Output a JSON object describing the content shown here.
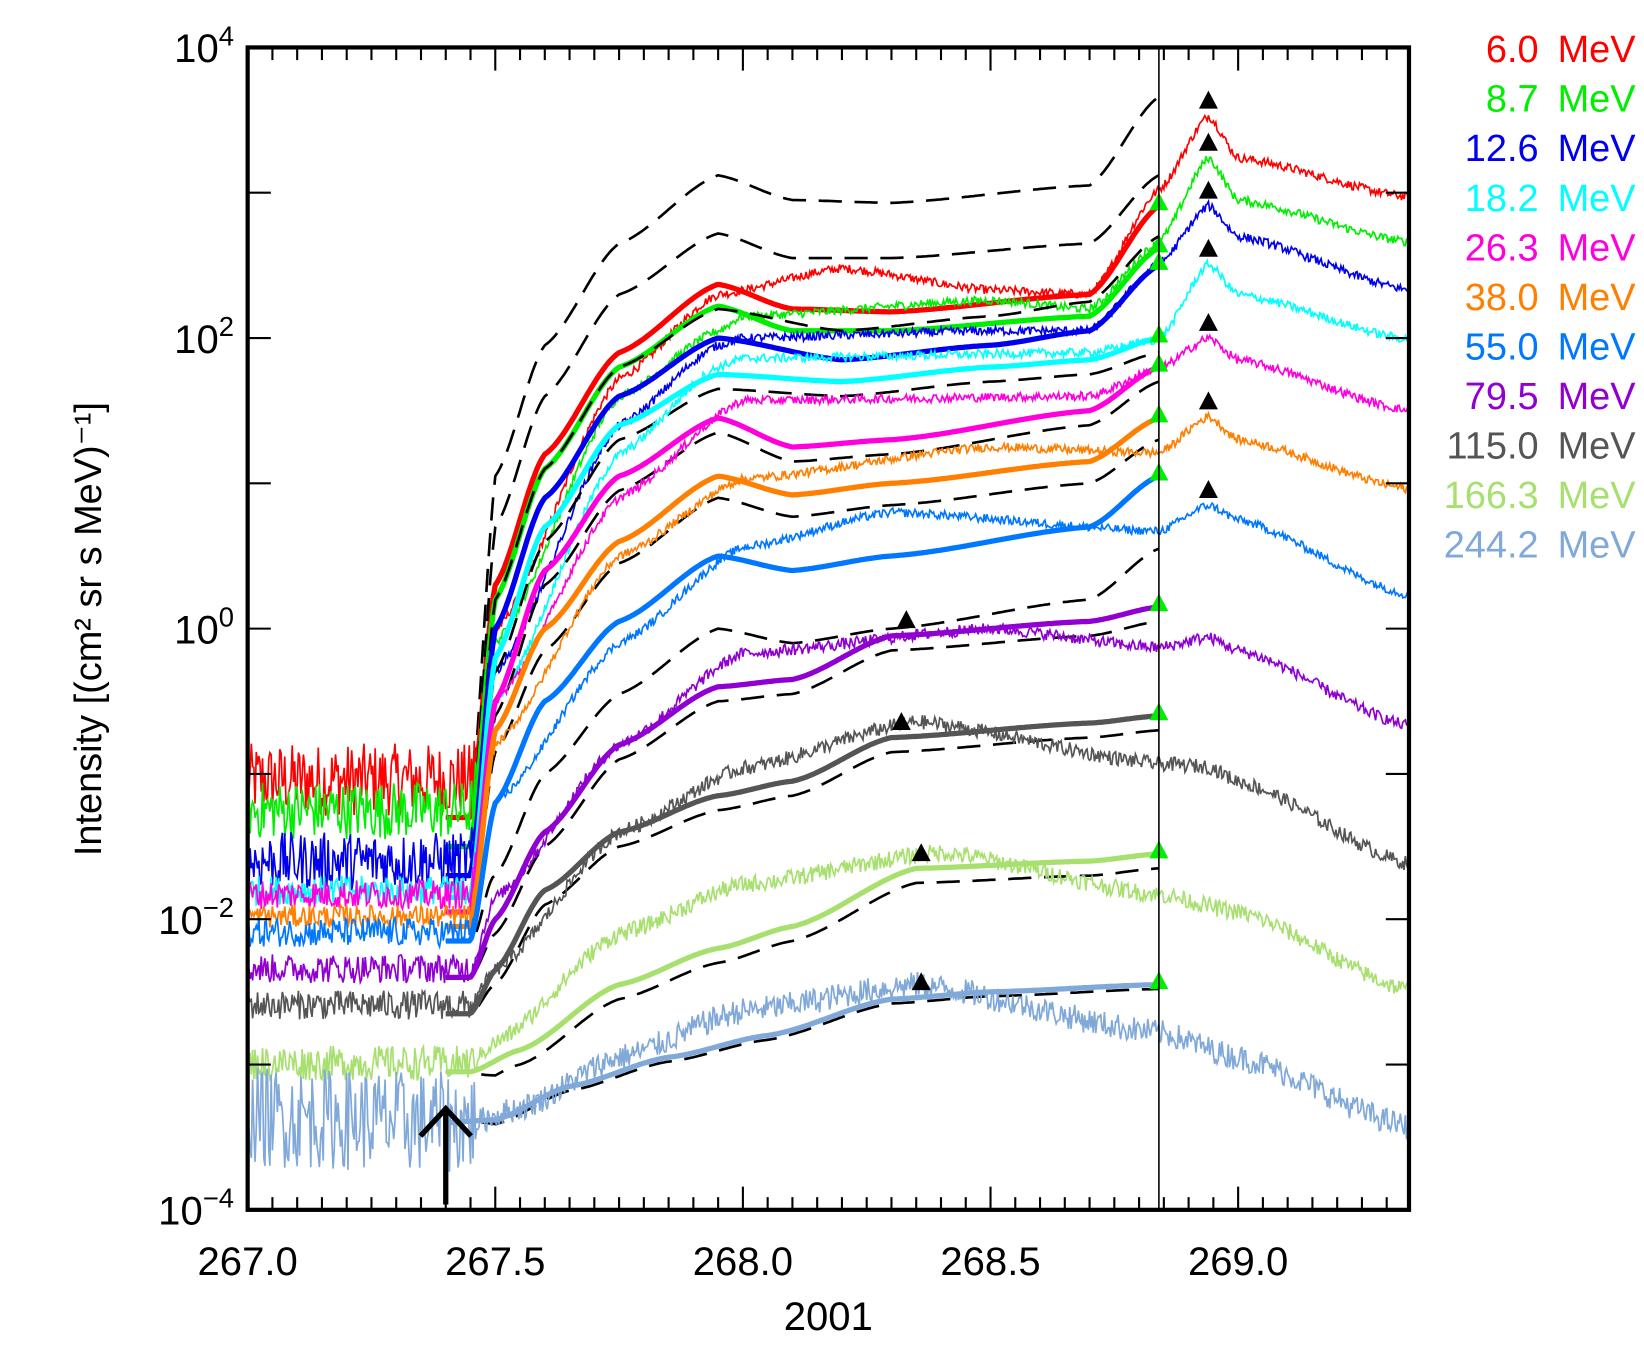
{
  "chart_data": {
    "type": "line",
    "title": "",
    "xlabel": "2001",
    "ylabel": "Intensity [(cm² sr s MeV)⁻¹]",
    "xlim": [
      267.0,
      269.345
    ],
    "ylim": [
      0.0001,
      10000
    ],
    "yscale": "log",
    "x_ticks": [
      "267.0",
      "267.5",
      "268.0",
      "268.5",
      "269.0"
    ],
    "x_tick_values": [
      267.0,
      267.5,
      268.0,
      268.5,
      269.0
    ],
    "y_ticks": [
      {
        "exp": "4",
        "value": 4
      },
      {
        "exp": "2",
        "value": 2
      },
      {
        "exp": "0",
        "value": 0
      },
      {
        "exp": "-2",
        "value": -2
      },
      {
        "exp": "-4",
        "value": -4
      }
    ],
    "y_tick_base": "10",
    "legend_placement": "right",
    "shock_time": 268.84,
    "onset_arrow_time": 267.4,
    "series": [
      {
        "name": "6.0 MeV",
        "energy": "6.0",
        "color": "#ff0000",
        "observed_log10": [
          [
            267.0,
            -1.04
          ],
          [
            267.45,
            -1.04
          ],
          [
            267.5,
            -0.02
          ],
          [
            267.75,
            1.72
          ],
          [
            267.95,
            2.3
          ],
          [
            268.2,
            2.48
          ],
          [
            268.5,
            2.33
          ],
          [
            268.7,
            2.3
          ],
          [
            268.84,
            3.02
          ],
          [
            268.94,
            3.53
          ],
          [
            269.0,
            3.24
          ],
          [
            269.345,
            2.97
          ]
        ],
        "fit_log10": [
          [
            267.4,
            -1.3
          ],
          [
            267.45,
            -1.3
          ],
          [
            267.5,
            0.3
          ],
          [
            267.6,
            1.2
          ],
          [
            267.75,
            1.9
          ],
          [
            267.95,
            2.37
          ],
          [
            268.1,
            2.2
          ],
          [
            268.3,
            2.18
          ],
          [
            268.7,
            2.3
          ],
          [
            268.84,
            2.91
          ]
        ],
        "dashed_offset": 0.75,
        "peak_marker": 268.94
      },
      {
        "name": "8.7 MeV",
        "energy": "8.7",
        "color": "#00ee00",
        "observed_log10": [
          [
            267.0,
            -1.25
          ],
          [
            267.45,
            -1.25
          ],
          [
            267.5,
            -0.1
          ],
          [
            267.75,
            1.6
          ],
          [
            267.95,
            2.05
          ],
          [
            268.0,
            2.15
          ],
          [
            268.5,
            2.26
          ],
          [
            268.7,
            2.2
          ],
          [
            268.84,
            2.66
          ],
          [
            268.94,
            3.24
          ],
          [
            269.0,
            2.95
          ],
          [
            269.345,
            2.66
          ]
        ],
        "fit_log10": [
          [
            267.4,
            -1.5
          ],
          [
            267.45,
            -1.5
          ],
          [
            267.5,
            0.2
          ],
          [
            267.6,
            1.1
          ],
          [
            267.75,
            1.8
          ],
          [
            267.95,
            2.22
          ],
          [
            268.1,
            2.05
          ],
          [
            268.3,
            2.05
          ],
          [
            268.7,
            2.15
          ],
          [
            268.84,
            2.62
          ]
        ],
        "dashed_offset": 0.5,
        "peak_marker": 268.94
      },
      {
        "name": "12.6 MeV",
        "energy": "12.6",
        "color": "#0000ee",
        "observed_log10": [
          [
            267.0,
            -1.6
          ],
          [
            267.45,
            -1.6
          ],
          [
            267.5,
            -0.3
          ],
          [
            267.75,
            1.4
          ],
          [
            267.95,
            1.95
          ],
          [
            268.0,
            2.0
          ],
          [
            268.5,
            2.05
          ],
          [
            268.7,
            2.05
          ],
          [
            268.84,
            2.51
          ],
          [
            268.94,
            2.91
          ],
          [
            269.0,
            2.7
          ],
          [
            269.345,
            2.33
          ]
        ],
        "fit_log10": [
          [
            267.4,
            -1.7
          ],
          [
            267.45,
            -1.7
          ],
          [
            267.5,
            0.0
          ],
          [
            267.6,
            0.9
          ],
          [
            267.75,
            1.6
          ],
          [
            267.95,
            2.0
          ],
          [
            268.2,
            1.85
          ],
          [
            268.5,
            1.95
          ],
          [
            268.7,
            2.05
          ],
          [
            268.84,
            2.5
          ]
        ],
        "dashed_offset": 0.2,
        "peak_marker": 268.94
      },
      {
        "name": "18.2 MeV",
        "energy": "18.2",
        "color": "#00ffff",
        "observed_log10": [
          [
            267.0,
            -1.8
          ],
          [
            267.45,
            -1.8
          ],
          [
            267.5,
            -0.5
          ],
          [
            267.75,
            1.2
          ],
          [
            267.95,
            1.8
          ],
          [
            268.0,
            1.86
          ],
          [
            268.7,
            1.9
          ],
          [
            268.84,
            1.99
          ],
          [
            268.94,
            2.51
          ],
          [
            269.0,
            2.3
          ],
          [
            269.345,
            1.99
          ]
        ],
        "fit_log10": [
          [
            267.4,
            -1.85
          ],
          [
            267.45,
            -1.85
          ],
          [
            267.5,
            -0.2
          ],
          [
            267.6,
            0.7
          ],
          [
            267.75,
            1.4
          ],
          [
            267.95,
            1.75
          ],
          [
            268.2,
            1.7
          ],
          [
            268.5,
            1.8
          ],
          [
            268.7,
            1.85
          ],
          [
            268.84,
            2.0
          ]
        ],
        "dashed_offset": -0.1,
        "peak_marker": 268.94
      },
      {
        "name": "26.3 MeV",
        "energy": "26.3",
        "color": "#ff00dd",
        "observed_log10": [
          [
            267.0,
            -1.83
          ],
          [
            267.45,
            -1.83
          ],
          [
            267.5,
            -0.5
          ],
          [
            267.75,
            0.9
          ],
          [
            268.0,
            1.57
          ],
          [
            268.7,
            1.6
          ],
          [
            268.84,
            1.79
          ],
          [
            268.94,
            2.0
          ],
          [
            269.0,
            1.85
          ],
          [
            269.345,
            1.5
          ]
        ],
        "fit_log10": [
          [
            267.4,
            -1.95
          ],
          [
            267.45,
            -1.95
          ],
          [
            267.5,
            -0.5
          ],
          [
            267.6,
            0.4
          ],
          [
            267.75,
            1.05
          ],
          [
            267.95,
            1.45
          ],
          [
            268.1,
            1.25
          ],
          [
            268.3,
            1.3
          ],
          [
            268.7,
            1.5
          ],
          [
            268.84,
            1.8
          ]
        ],
        "dashed_offset": -0.1,
        "peak_marker": 268.94
      },
      {
        "name": "38.0 MeV",
        "energy": "38.0",
        "color": "#ff7f00",
        "observed_log10": [
          [
            267.0,
            -1.98
          ],
          [
            267.45,
            -1.98
          ],
          [
            267.5,
            -0.8
          ],
          [
            267.75,
            0.5
          ],
          [
            268.0,
            1.03
          ],
          [
            268.5,
            1.25
          ],
          [
            268.84,
            1.21
          ],
          [
            268.94,
            1.46
          ],
          [
            269.0,
            1.3
          ],
          [
            269.345,
            0.96
          ]
        ],
        "fit_log10": [
          [
            267.4,
            -2.05
          ],
          [
            267.45,
            -2.05
          ],
          [
            267.5,
            -0.7
          ],
          [
            267.6,
            0.0
          ],
          [
            267.75,
            0.6
          ],
          [
            267.95,
            1.05
          ],
          [
            268.1,
            0.92
          ],
          [
            268.3,
            1.0
          ],
          [
            268.7,
            1.15
          ],
          [
            268.84,
            1.45
          ]
        ],
        "dashed_offset": -0.15,
        "peak_marker": 268.94
      },
      {
        "name": "55.0 MeV",
        "energy": "55.0",
        "color": "#0077ff",
        "observed_log10": [
          [
            267.0,
            -2.09
          ],
          [
            267.45,
            -2.09
          ],
          [
            267.5,
            -1.2
          ],
          [
            267.75,
            -0.1
          ],
          [
            268.0,
            0.56
          ],
          [
            268.3,
            0.8
          ],
          [
            268.84,
            0.67
          ],
          [
            268.94,
            0.85
          ],
          [
            269.0,
            0.75
          ],
          [
            269.345,
            0.23
          ]
        ],
        "fit_log10": [
          [
            267.4,
            -2.15
          ],
          [
            267.45,
            -2.15
          ],
          [
            267.5,
            -1.2
          ],
          [
            267.6,
            -0.5
          ],
          [
            267.75,
            0.05
          ],
          [
            267.95,
            0.5
          ],
          [
            268.1,
            0.4
          ],
          [
            268.3,
            0.5
          ],
          [
            268.7,
            0.7
          ],
          [
            268.84,
            1.05
          ]
        ],
        "dashed_offset": -0.5,
        "peak_marker": 268.94
      },
      {
        "name": "79.5 MeV",
        "energy": "79.5",
        "color": "#9000d0",
        "observed_log10": [
          [
            267.0,
            -2.34
          ],
          [
            267.45,
            -2.34
          ],
          [
            267.5,
            -1.85
          ],
          [
            267.75,
            -0.8
          ],
          [
            268.0,
            -0.17
          ],
          [
            268.5,
            0.0
          ],
          [
            268.84,
            -0.13
          ],
          [
            268.94,
            -0.06
          ],
          [
            269.0,
            -0.15
          ],
          [
            269.345,
            -0.67
          ]
        ],
        "fit_log10": [
          [
            267.4,
            -2.4
          ],
          [
            267.45,
            -2.4
          ],
          [
            267.5,
            -2.0
          ],
          [
            267.6,
            -1.4
          ],
          [
            267.75,
            -0.8
          ],
          [
            267.95,
            -0.4
          ],
          [
            268.1,
            -0.35
          ],
          [
            268.3,
            -0.05
          ],
          [
            268.7,
            0.05
          ],
          [
            268.84,
            0.15
          ]
        ],
        "dashed_offset": -0.1,
        "peak_marker": 268.33
      },
      {
        "name": "115.0 MeV",
        "energy": "115.0",
        "color": "#555555",
        "observed_log10": [
          [
            267.0,
            -2.59
          ],
          [
            267.45,
            -2.59
          ],
          [
            267.5,
            -2.35
          ],
          [
            267.75,
            -1.4
          ],
          [
            268.0,
            -0.96
          ],
          [
            268.35,
            -0.64
          ],
          [
            268.84,
            -0.93
          ],
          [
            268.94,
            -0.95
          ],
          [
            269.0,
            -1.05
          ],
          [
            269.345,
            -1.62
          ]
        ],
        "fit_log10": [
          [
            267.4,
            -2.65
          ],
          [
            267.45,
            -2.65
          ],
          [
            267.5,
            -2.35
          ],
          [
            267.6,
            -1.8
          ],
          [
            267.75,
            -1.4
          ],
          [
            267.95,
            -1.15
          ],
          [
            268.1,
            -1.05
          ],
          [
            268.3,
            -0.75
          ],
          [
            268.7,
            -0.65
          ],
          [
            268.84,
            -0.6
          ]
        ],
        "dashed_offset": -0.1,
        "peak_marker": 268.32
      },
      {
        "name": "166.3 MeV",
        "energy": "166.3",
        "color": "#a8e070",
        "observed_log10": [
          [
            267.0,
            -2.99
          ],
          [
            267.45,
            -2.99
          ],
          [
            267.5,
            -2.85
          ],
          [
            267.75,
            -2.1
          ],
          [
            268.0,
            -1.76
          ],
          [
            268.4,
            -1.54
          ],
          [
            268.84,
            -1.83
          ],
          [
            269.0,
            -1.95
          ],
          [
            269.345,
            -2.49
          ]
        ],
        "fit_log10": [
          [
            267.4,
            -3.05
          ],
          [
            267.45,
            -3.05
          ],
          [
            267.55,
            -2.9
          ],
          [
            267.75,
            -2.45
          ],
          [
            267.95,
            -2.2
          ],
          [
            268.1,
            -2.05
          ],
          [
            268.35,
            -1.65
          ],
          [
            268.7,
            -1.6
          ],
          [
            268.84,
            -1.55
          ]
        ],
        "dashed_offset": -0.1,
        "peak_marker": 268.36
      },
      {
        "name": "244.2 MeV",
        "energy": "244.2",
        "color": "#80a8d8",
        "observed_log10": [
          [
            267.0,
            -3.36
          ],
          [
            267.45,
            -3.4
          ],
          [
            267.55,
            -3.3
          ],
          [
            267.75,
            -2.95
          ],
          [
            268.0,
            -2.63
          ],
          [
            268.35,
            -2.45
          ],
          [
            268.84,
            -2.78
          ],
          [
            269.0,
            -2.95
          ],
          [
            269.345,
            -3.43
          ]
        ],
        "fit_log10": [
          [
            267.4,
            -3.4
          ],
          [
            267.5,
            -3.38
          ],
          [
            267.65,
            -3.15
          ],
          [
            267.85,
            -2.95
          ],
          [
            268.05,
            -2.8
          ],
          [
            268.3,
            -2.55
          ],
          [
            268.5,
            -2.5
          ],
          [
            268.84,
            -2.45
          ]
        ],
        "dashed_offset": -0.03,
        "peak_marker": 268.36
      }
    ],
    "legend_unit": "MeV"
  }
}
